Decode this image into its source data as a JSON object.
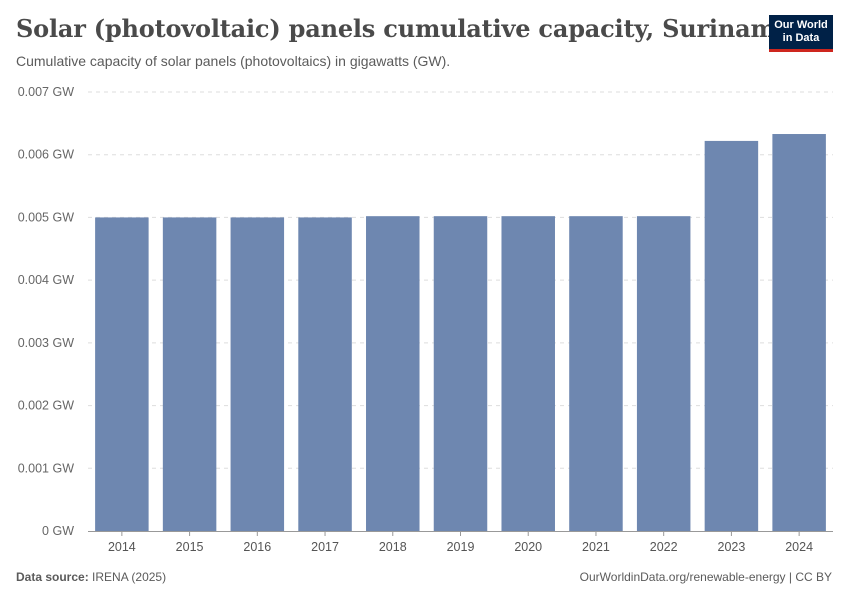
{
  "header": {
    "title": "Solar (photovoltaic) panels cumulative capacity, Suriname",
    "subtitle": "Cumulative capacity of solar panels (photovoltaics) in gigawatts (GW).",
    "logo_line1": "Our World",
    "logo_line2": "in Data"
  },
  "footer": {
    "source_label": "Data source:",
    "source_value": "IRENA (2025)",
    "attribution": "OurWorldinData.org/renewable-energy | CC BY"
  },
  "colors": {
    "bar": "#6e87b0",
    "grid": "#dddddd",
    "axis": "#999999",
    "text": "#5b5b5b"
  },
  "chart_data": {
    "type": "bar",
    "title": "Solar (photovoltaic) panels cumulative capacity, Suriname",
    "xlabel": "",
    "ylabel": "",
    "unit": "GW",
    "categories": [
      "2014",
      "2015",
      "2016",
      "2017",
      "2018",
      "2019",
      "2020",
      "2021",
      "2022",
      "2023",
      "2024"
    ],
    "values": [
      0.005,
      0.005,
      0.005,
      0.005,
      0.00502,
      0.00502,
      0.00502,
      0.00502,
      0.00502,
      0.00622,
      0.00633
    ],
    "ylim": [
      0,
      0.007
    ],
    "yticks": [
      0,
      0.001,
      0.002,
      0.003,
      0.004,
      0.005,
      0.006,
      0.007
    ],
    "ytick_labels": [
      "0 GW",
      "0.001 GW",
      "0.002 GW",
      "0.003 GW",
      "0.004 GW",
      "0.005 GW",
      "0.006 GW",
      "0.007 GW"
    ],
    "grid": true
  }
}
